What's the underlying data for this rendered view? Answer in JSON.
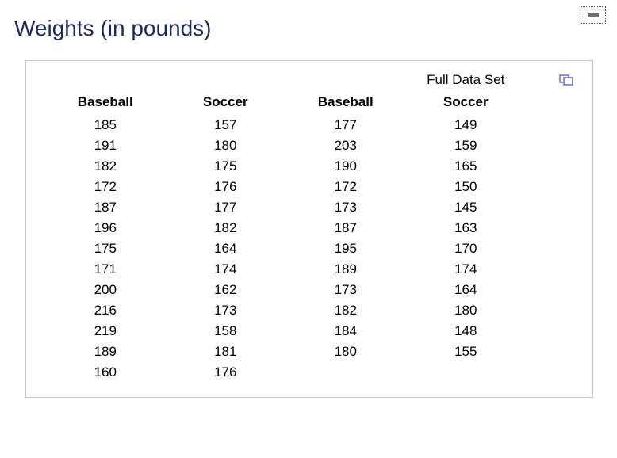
{
  "title": "Weights (in pounds)",
  "full_data_set_label": "Full Data Set",
  "table": {
    "type": "table",
    "columns": [
      "Baseball",
      "Soccer",
      "Baseball",
      "Soccer"
    ],
    "rows": [
      [
        185,
        157,
        177,
        149
      ],
      [
        191,
        180,
        203,
        159
      ],
      [
        182,
        175,
        190,
        165
      ],
      [
        172,
        176,
        172,
        150
      ],
      [
        187,
        177,
        173,
        145
      ],
      [
        196,
        182,
        187,
        163
      ],
      [
        175,
        164,
        195,
        170
      ],
      [
        171,
        174,
        189,
        174
      ],
      [
        200,
        162,
        173,
        164
      ],
      [
        216,
        173,
        182,
        180
      ],
      [
        219,
        158,
        184,
        148
      ],
      [
        189,
        181,
        180,
        155
      ],
      [
        160,
        176,
        "",
        ""
      ]
    ],
    "header_font_weight": 700,
    "body_fontsize": 17,
    "text_color": "#000000",
    "border_color": "#c8c8c8"
  },
  "colors": {
    "title_color": "#1a2b5c",
    "background": "#ffffff",
    "popout_icon": "#5a62c8",
    "corner_widget_bar": "#6f6f6f"
  }
}
